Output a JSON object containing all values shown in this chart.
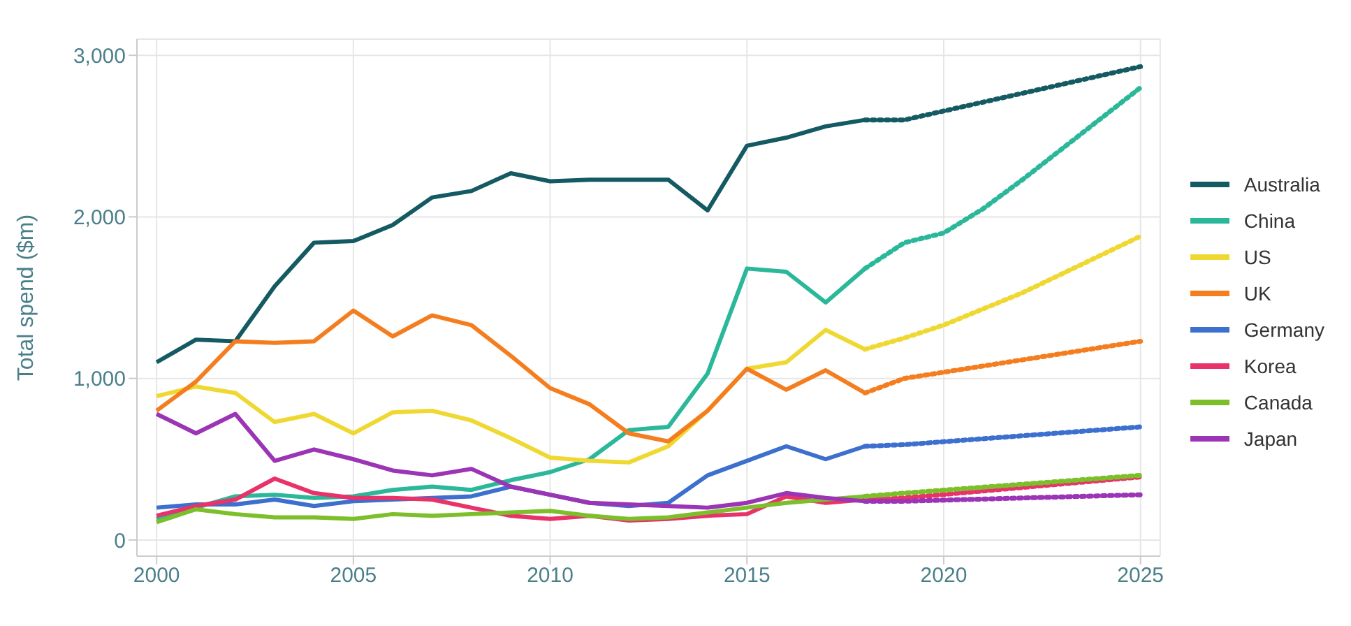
{
  "chart_data": {
    "type": "line",
    "ylabel": "Total spend ($m)",
    "xlim": [
      1999.5,
      2025.5
    ],
    "xticks": [
      2000,
      2005,
      2010,
      2015,
      2020,
      2025
    ],
    "ylim": [
      -100,
      3100
    ],
    "yticks": [
      0,
      {
        "value": 1000,
        "label": "1,000"
      },
      {
        "value": 2000,
        "label": "2,000"
      },
      {
        "value": 3000,
        "label": "3,000"
      }
    ],
    "grid": true,
    "legend": "right",
    "line_style": "solid",
    "marker": "none",
    "x": [
      2000,
      2001,
      2002,
      2003,
      2004,
      2005,
      2006,
      2007,
      2008,
      2009,
      2010,
      2011,
      2012,
      2013,
      2014,
      2015,
      2016,
      2017,
      2018
    ],
    "series": [
      {
        "name": "Australia",
        "color": "#145a63",
        "values": [
          1100,
          1240,
          1230,
          1570,
          1840,
          1850,
          1950,
          2120,
          2160,
          2270,
          2220,
          2230,
          2230,
          2230,
          2040,
          2440,
          2490,
          2560,
          2600
        ]
      },
      {
        "name": "China",
        "color": "#2bb89a",
        "values": [
          130,
          200,
          270,
          280,
          260,
          270,
          310,
          330,
          310,
          370,
          420,
          500,
          680,
          700,
          1030,
          1680,
          1660,
          1470,
          1680
        ]
      },
      {
        "name": "US",
        "color": "#f0d832",
        "values": [
          890,
          950,
          910,
          730,
          780,
          660,
          790,
          800,
          740,
          630,
          510,
          490,
          480,
          580,
          800,
          1060,
          1100,
          1300,
          1180
        ]
      },
      {
        "name": "UK",
        "color": "#f47e1f",
        "values": [
          800,
          980,
          1230,
          1220,
          1230,
          1420,
          1260,
          1390,
          1330,
          1140,
          940,
          840,
          660,
          610,
          800,
          1060,
          930,
          1050,
          910
        ]
      },
      {
        "name": "Germany",
        "color": "#3d6fcf",
        "values": [
          200,
          220,
          220,
          250,
          210,
          240,
          250,
          260,
          270,
          330,
          280,
          230,
          210,
          230,
          400,
          490,
          580,
          500,
          580
        ]
      },
      {
        "name": "Korea",
        "color": "#e8336a",
        "values": [
          150,
          210,
          250,
          380,
          290,
          260,
          260,
          250,
          200,
          150,
          130,
          150,
          120,
          130,
          150,
          160,
          270,
          230,
          250
        ]
      },
      {
        "name": "Canada",
        "color": "#7cbf2a",
        "values": [
          110,
          190,
          160,
          140,
          140,
          130,
          160,
          150,
          160,
          170,
          180,
          150,
          130,
          140,
          170,
          200,
          230,
          250,
          270
        ]
      },
      {
        "name": "Japan",
        "color": "#9b34b5",
        "values": [
          780,
          660,
          780,
          490,
          560,
          500,
          430,
          400,
          440,
          330,
          280,
          230,
          220,
          210,
          200,
          230,
          290,
          260,
          240
        ]
      },
      {
        "color": "#145a63",
        "line_style": "dotted",
        "x": [
          2018,
          2019,
          2025
        ],
        "values": [
          2600,
          2600,
          2930
        ]
      },
      {
        "color": "#2bb89a",
        "line_style": "dotted",
        "x": [
          2018,
          2019,
          2020,
          2021,
          2022,
          2023,
          2024,
          2025
        ],
        "values": [
          1680,
          1840,
          1900,
          2050,
          2230,
          2420,
          2610,
          2800
        ]
      },
      {
        "color": "#f0d832",
        "line_style": "dotted",
        "x": [
          2018,
          2019,
          2020,
          2022,
          2025
        ],
        "values": [
          1180,
          1250,
          1330,
          1530,
          1880
        ]
      },
      {
        "color": "#f47e1f",
        "line_style": "dotted",
        "x": [
          2018,
          2019,
          2025
        ],
        "values": [
          910,
          1000,
          1230
        ]
      },
      {
        "color": "#3d6fcf",
        "line_style": "dotted",
        "x": [
          2018,
          2019,
          2025
        ],
        "values": [
          580,
          590,
          700
        ]
      },
      {
        "color": "#e8336a",
        "line_style": "dotted",
        "x": [
          2018,
          2019,
          2025
        ],
        "values": [
          250,
          260,
          390
        ]
      },
      {
        "color": "#7cbf2a",
        "line_style": "dotted",
        "x": [
          2018,
          2019,
          2025
        ],
        "values": [
          270,
          290,
          400
        ]
      },
      {
        "color": "#9b34b5",
        "line_style": "dotted",
        "x": [
          2018,
          2019,
          2025
        ],
        "values": [
          240,
          240,
          280
        ]
      }
    ]
  }
}
